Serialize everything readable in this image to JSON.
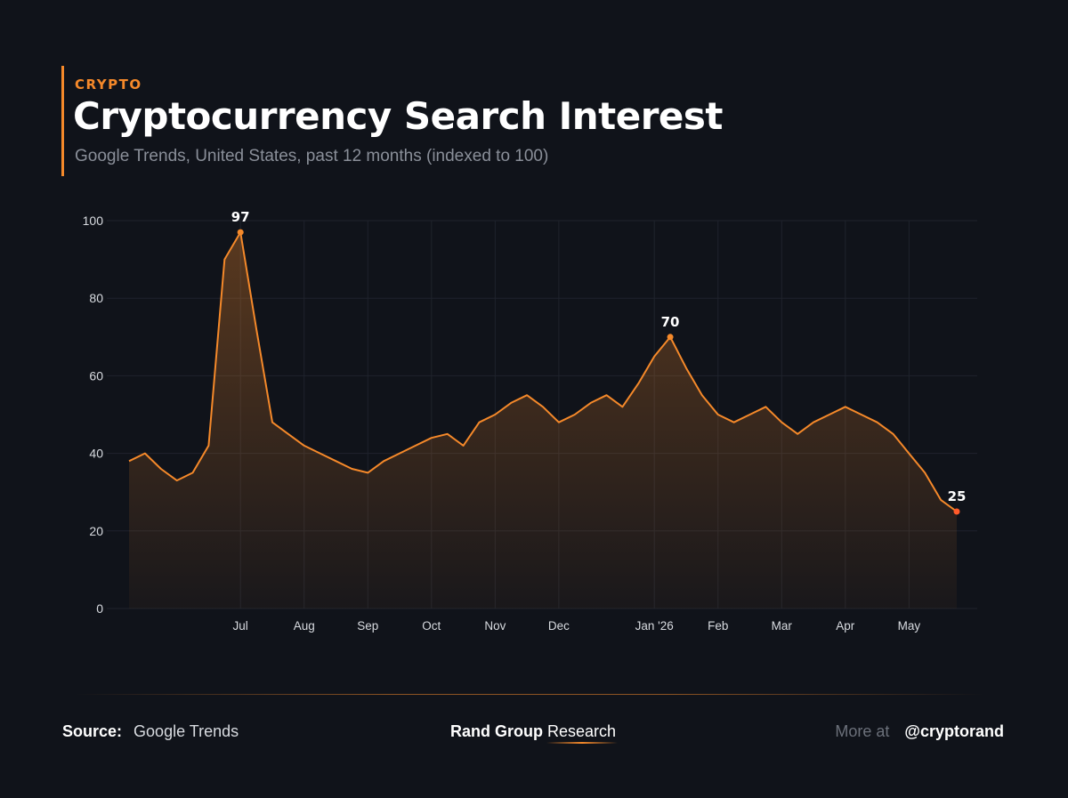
{
  "header": {
    "kicker": "CRYPTO",
    "title": "Cryptocurrency Search Interest",
    "subtitle": "Google Trends, United States, past 12 months (indexed to 100)"
  },
  "colors": {
    "accent": "#f5892a",
    "background": "#10131a",
    "grid": "#1f232c",
    "axis_text": "#d8dbe0"
  },
  "chart_data": {
    "type": "area",
    "title": "Cryptocurrency Search Interest",
    "xlabel": "",
    "ylabel": "",
    "ylim": [
      0,
      100
    ],
    "y_ticks": [
      0,
      20,
      40,
      60,
      80,
      100
    ],
    "x_tick_labels": [
      "Jul",
      "Aug",
      "Sep",
      "Oct",
      "Nov",
      "Dec",
      "Jan '26",
      "Feb",
      "Mar",
      "Apr",
      "May"
    ],
    "x_tick_positions": [
      7,
      11,
      15,
      19,
      23,
      27,
      33,
      37,
      41,
      45,
      49
    ],
    "grid": true,
    "x": [
      0,
      1,
      2,
      3,
      4,
      5,
      6,
      7,
      8,
      9,
      10,
      11,
      12,
      13,
      14,
      15,
      16,
      17,
      18,
      19,
      20,
      21,
      22,
      23,
      24,
      25,
      26,
      27,
      28,
      29,
      30,
      31,
      32,
      33,
      34,
      35,
      36,
      37,
      38,
      39,
      40,
      41,
      42,
      43,
      44,
      45,
      46,
      47,
      48,
      49,
      50,
      51,
      52
    ],
    "series": [
      {
        "values": [
          38,
          40,
          36,
          33,
          35,
          42,
          90,
          97,
          72,
          48,
          45,
          42,
          40,
          38,
          36,
          35,
          38,
          40,
          42,
          44,
          45,
          42,
          48,
          50,
          53,
          55,
          52,
          48,
          50,
          53,
          55,
          52,
          58,
          65,
          70,
          62,
          55,
          50,
          48,
          50,
          52,
          48,
          45,
          48,
          50,
          52,
          50,
          48,
          45,
          40,
          35,
          28,
          25
        ]
      }
    ],
    "annotations": [
      {
        "index": 7,
        "label": "97"
      },
      {
        "index": 34,
        "label": "70"
      },
      {
        "index": 52,
        "label": "25"
      }
    ]
  },
  "footer": {
    "source_label": "Source:",
    "source_value": "Google Trends",
    "brand_bold": "Rand Group",
    "brand_light": "Research",
    "more_label": "More at",
    "handle": "@cryptorand"
  }
}
